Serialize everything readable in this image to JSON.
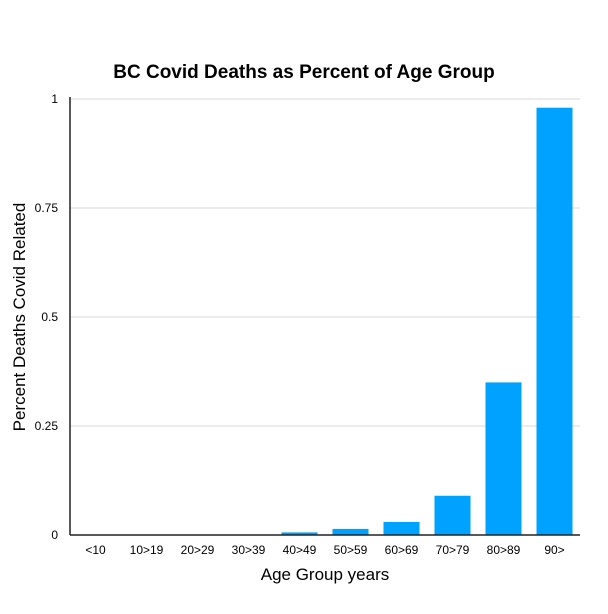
{
  "chart_data": {
    "type": "bar",
    "title": "BC Covid Deaths as Percent of Age Group",
    "xlabel": "Age Group years",
    "ylabel": "Percent Deaths Covid Related",
    "categories": [
      "<10",
      "10>19",
      "20>29",
      "30>39",
      "40>49",
      "50>59",
      "60>69",
      "70>79",
      "80>89",
      "90>"
    ],
    "values": [
      0,
      0,
      0,
      0,
      0.006,
      0.014,
      0.03,
      0.09,
      0.35,
      0.98
    ],
    "ylim": [
      0,
      1
    ],
    "yticks": [
      0,
      0.25,
      0.5,
      0.75,
      1
    ],
    "ytick_labels": [
      "0",
      "0.25",
      "0.5",
      "0.75",
      "1"
    ],
    "grid": true,
    "bar_color": "#00a2ff"
  }
}
